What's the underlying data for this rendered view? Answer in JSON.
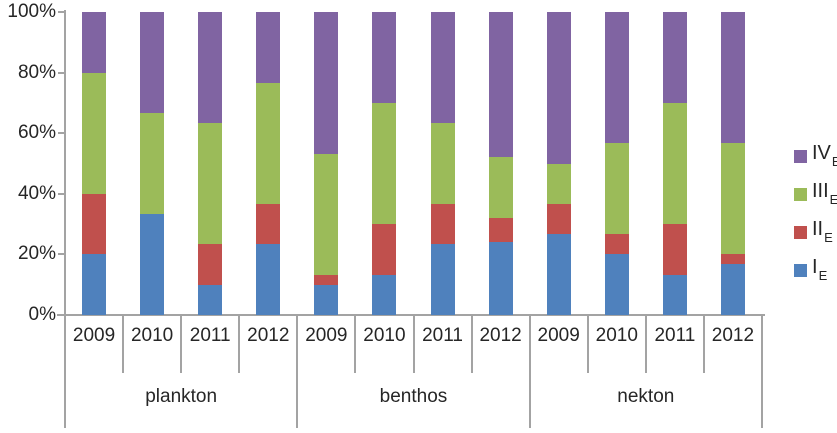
{
  "chart_data": {
    "type": "bar",
    "subtype": "100-percent-stacked-column",
    "title": "",
    "xlabel": "",
    "ylabel": "",
    "categories": [
      "2009",
      "2010",
      "2011",
      "2012",
      "2009",
      "2010",
      "2011",
      "2012",
      "2009",
      "2010",
      "2011",
      "2012"
    ],
    "groups": [
      {
        "label": "plankton",
        "years": [
          "2009",
          "2010",
          "2011",
          "2012"
        ]
      },
      {
        "label": "benthos",
        "years": [
          "2009",
          "2010",
          "2011",
          "2012"
        ]
      },
      {
        "label": "nekton",
        "years": [
          "2009",
          "2010",
          "2011",
          "2012"
        ]
      }
    ],
    "series": [
      {
        "name": "I_E",
        "display": "I",
        "subscript": "E",
        "color": "#4F81BD",
        "values": [
          20,
          33.3,
          10,
          23.3,
          10,
          13.3,
          23.3,
          24,
          26.7,
          20,
          13.3,
          16.7
        ]
      },
      {
        "name": "II_E",
        "display": "II",
        "subscript": "E",
        "color": "#C0504D",
        "values": [
          20,
          0,
          13.3,
          13.4,
          3.3,
          16.7,
          13.4,
          8,
          10,
          6.7,
          16.7,
          3.3
        ]
      },
      {
        "name": "III_E",
        "display": "III",
        "subscript": "E",
        "color": "#9BBB59",
        "values": [
          40,
          33.4,
          40,
          40,
          40,
          40,
          26.6,
          20,
          13.3,
          30,
          40,
          36.7
        ]
      },
      {
        "name": "IV_E",
        "display": "IV",
        "subscript": "E",
        "color": "#8064A2",
        "values": [
          20,
          33.3,
          36.7,
          23.3,
          46.7,
          30,
          36.7,
          48,
          50,
          43.3,
          30,
          43.3
        ]
      }
    ],
    "legend": {
      "position": "right",
      "order_top_to_bottom": [
        "IV_E",
        "III_E",
        "II_E",
        "I_E"
      ]
    },
    "y_axis": {
      "min": 0,
      "max": 100,
      "tick_labels_top_to_bottom": [
        "100%",
        "80%",
        "60%",
        "40%",
        "20%",
        "0%"
      ],
      "gridlines": false
    },
    "colors": {
      "axis_line": "#a3a3a3",
      "text": "#262626"
    }
  }
}
